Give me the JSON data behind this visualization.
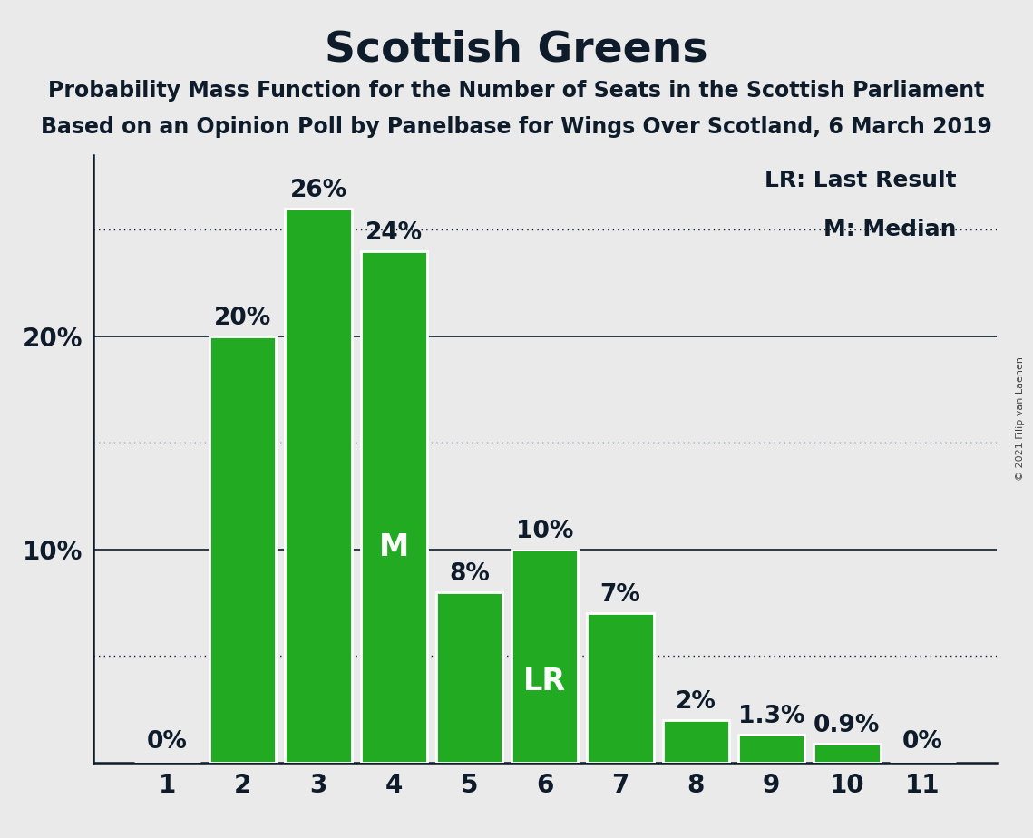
{
  "title": "Scottish Greens",
  "subtitle1": "Probability Mass Function for the Number of Seats in the Scottish Parliament",
  "subtitle2": "Based on an Opinion Poll by Panelbase for Wings Over Scotland, 6 March 2019",
  "copyright": "© 2021 Filip van Laenen",
  "categories": [
    1,
    2,
    3,
    4,
    5,
    6,
    7,
    8,
    9,
    10,
    11
  ],
  "values": [
    0,
    20,
    26,
    24,
    8,
    10,
    7,
    2,
    1.3,
    0.9,
    0
  ],
  "labels": [
    "0%",
    "20%",
    "26%",
    "24%",
    "8%",
    "10%",
    "7%",
    "2%",
    "1.3%",
    "0.9%",
    "0%"
  ],
  "bar_color": "#22aa22",
  "bar_edge_color": "#ffffff",
  "background_color": "#eaeaea",
  "text_color": "#0d1b2a",
  "median_bar_idx": 3,
  "lr_bar_idx": 5,
  "median_label": "M",
  "lr_label": "LR",
  "legend_lr": "LR: Last Result",
  "legend_m": "M: Median",
  "ylim": [
    0,
    28.5
  ],
  "yticks": [
    10,
    20
  ],
  "ytick_labels": [
    "10%",
    "20%"
  ],
  "dotted_gridlines": [
    5,
    15,
    25
  ],
  "solid_gridlines": [
    10,
    20
  ],
  "title_fontsize": 34,
  "subtitle_fontsize": 17,
  "axis_fontsize": 20,
  "bar_label_fontsize": 19,
  "inner_label_fontsize": 24,
  "legend_fontsize": 18,
  "copyright_fontsize": 8
}
